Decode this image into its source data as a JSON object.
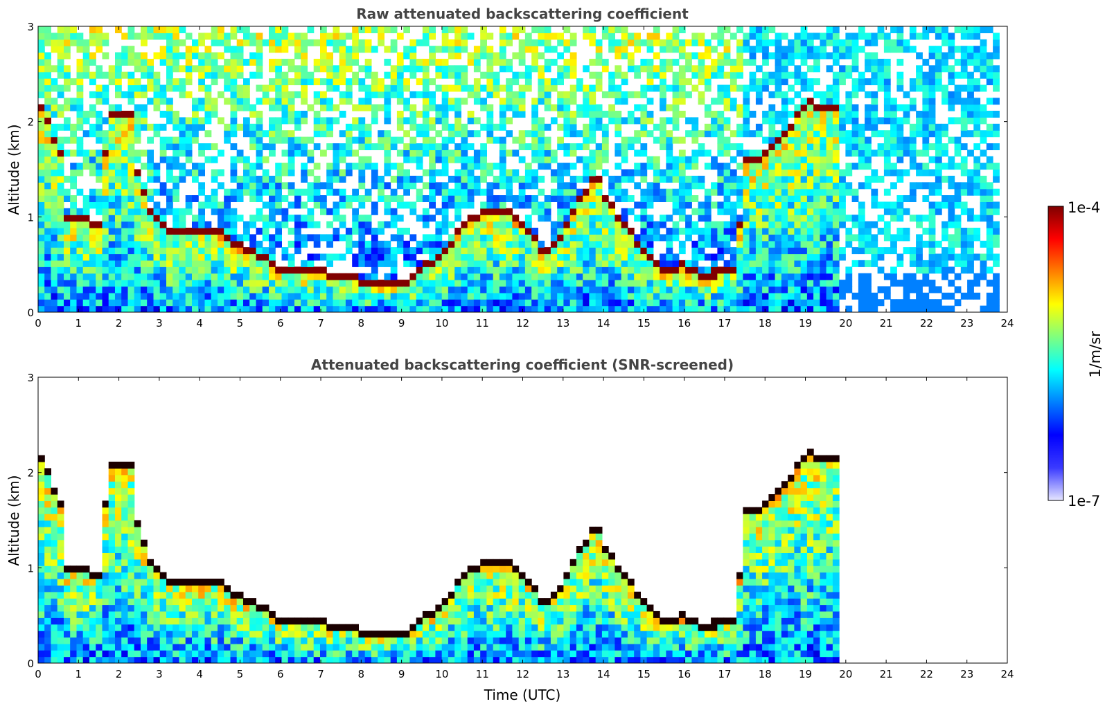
{
  "chart_data": [
    {
      "type": "heatmap",
      "title": "Raw attenuated backscattering coefficient",
      "xlabel": "",
      "ylabel": "Altitude (km)",
      "xlim": [
        0,
        24
      ],
      "ylim": [
        0,
        3
      ],
      "xticks": [
        0,
        1,
        2,
        3,
        4,
        5,
        6,
        7,
        8,
        9,
        10,
        11,
        12,
        13,
        14,
        15,
        16,
        17,
        18,
        19,
        20,
        21,
        22,
        23,
        24
      ],
      "yticks": [
        0,
        1,
        2,
        3
      ],
      "x_unit": "hours (UTC)",
      "y_unit": "km",
      "data_extent_hours": [
        0,
        23.8
      ],
      "colormap": "jet",
      "scale": "log",
      "cloud_layer": [
        [
          0,
          2.2
        ],
        [
          0.6,
          1.6
        ],
        [
          0.65,
          0.95
        ],
        [
          1.6,
          0.9
        ],
        [
          1.7,
          2.05
        ],
        [
          2.3,
          2.05
        ],
        [
          2.4,
          1.5
        ],
        [
          2.8,
          1.0
        ],
        [
          3.2,
          0.85
        ],
        [
          3.5,
          0.8
        ],
        [
          4.5,
          0.8
        ],
        [
          5,
          0.65
        ],
        [
          5.5,
          0.55
        ],
        [
          6,
          0.42
        ],
        [
          7,
          0.38
        ],
        [
          7.5,
          0.36
        ],
        [
          8,
          0.3
        ],
        [
          8.5,
          0.28
        ],
        [
          9.2,
          0.3
        ],
        [
          9.6,
          0.45
        ],
        [
          10,
          0.55
        ],
        [
          10.5,
          0.9
        ],
        [
          11,
          1.0
        ],
        [
          11.5,
          1.05
        ],
        [
          12,
          0.9
        ],
        [
          12.5,
          0.6
        ],
        [
          13,
          0.8
        ],
        [
          13.5,
          1.2
        ],
        [
          13.8,
          1.45
        ],
        [
          14,
          1.2
        ],
        [
          14.5,
          0.9
        ],
        [
          15,
          0.6
        ],
        [
          15.5,
          0.4
        ],
        [
          16,
          0.45
        ],
        [
          16.5,
          0.35
        ],
        [
          17,
          0.4
        ],
        [
          17.3,
          0.45
        ],
        [
          17.5,
          1.55
        ],
        [
          18,
          1.6
        ],
        [
          18.3,
          1.75
        ],
        [
          18.7,
          1.95
        ],
        [
          19,
          2.15
        ],
        [
          19.2,
          2.15
        ],
        [
          19.5,
          2.1
        ],
        [
          19.9,
          2.1
        ]
      ]
    },
    {
      "type": "heatmap",
      "title": "Attenuated backscattering coefficient (SNR-screened)",
      "xlabel": "Time (UTC)",
      "ylabel": "Altitude (km)",
      "xlim": [
        0,
        24
      ],
      "ylim": [
        0,
        3
      ],
      "xticks": [
        0,
        1,
        2,
        3,
        4,
        5,
        6,
        7,
        8,
        9,
        10,
        11,
        12,
        13,
        14,
        15,
        16,
        17,
        18,
        19,
        20,
        21,
        22,
        23,
        24
      ],
      "yticks": [
        0,
        1,
        2,
        3
      ],
      "x_unit": "hours (UTC)",
      "y_unit": "km",
      "data_extent_hours": [
        0,
        23.8
      ],
      "colormap": "jet",
      "scale": "log",
      "screening": "low-SNR pixels removed (white)"
    }
  ],
  "colorbar": {
    "label": "1/m/sr",
    "max_label": "1e-4",
    "min_label": "1e-7",
    "stops": [
      "#7f0000",
      "#ff0000",
      "#ff7f00",
      "#ffff00",
      "#7fff7f",
      "#00ffff",
      "#007fff",
      "#0000ff",
      "#3a3aff",
      "#e6e6ff"
    ]
  }
}
